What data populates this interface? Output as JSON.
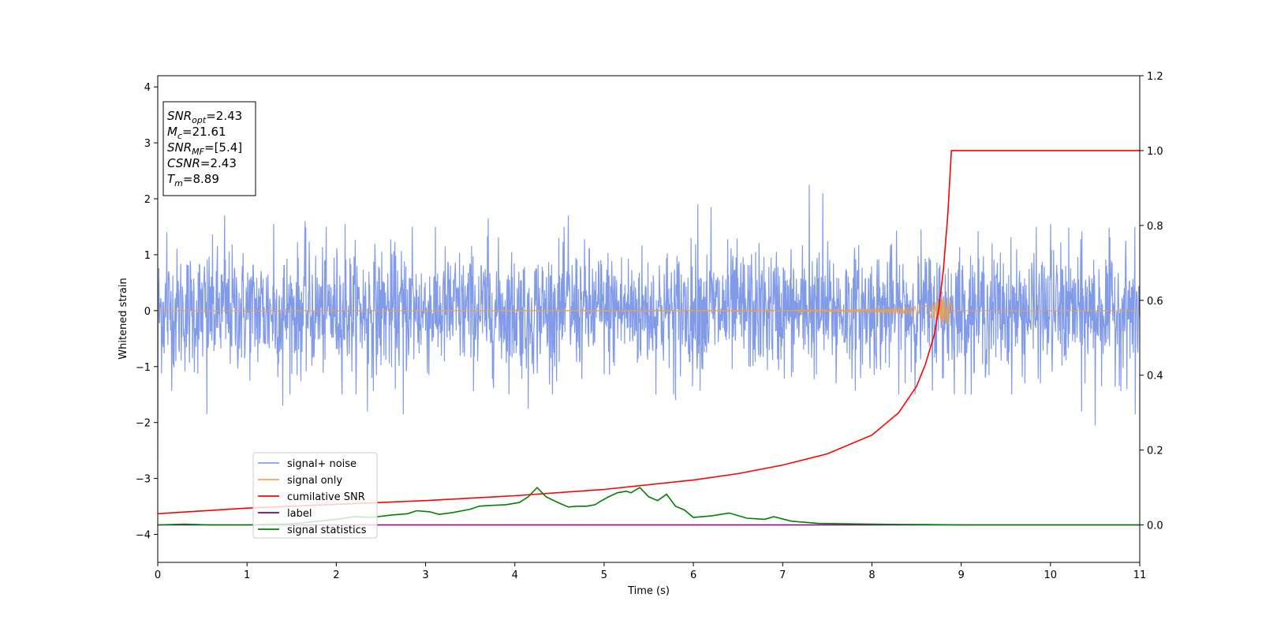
{
  "chart_data": {
    "type": "line",
    "title": "",
    "xlabel": "Time (s)",
    "ylabel": "Whitened strain",
    "y2label": "",
    "xlim": [
      0,
      11
    ],
    "ylim": [
      -4.5,
      4.2
    ],
    "y2lim": [
      -0.1,
      1.2
    ],
    "x_ticks": [
      0,
      1,
      2,
      3,
      4,
      5,
      6,
      7,
      8,
      9,
      10,
      11
    ],
    "y_ticks": [
      -4,
      -3,
      -2,
      -1,
      0,
      1,
      2,
      3,
      4
    ],
    "y2_ticks": [
      0.0,
      0.2,
      0.4,
      0.6,
      0.8,
      1.0,
      1.2
    ],
    "x_tick_labels": [
      "0",
      "1",
      "2",
      "3",
      "4",
      "5",
      "6",
      "7",
      "8",
      "9",
      "10",
      "11"
    ],
    "y_tick_labels": [
      "−4",
      "−3",
      "−2",
      "−1",
      "0",
      "1",
      "2",
      "3",
      "4"
    ],
    "y2_tick_labels": [
      "0.0",
      "0.2",
      "0.4",
      "0.6",
      "0.8",
      "1.0",
      "1.2"
    ],
    "grid": false,
    "legend_position": "lower-left",
    "annotation_box": {
      "position": "top-left",
      "lines": [
        {
          "main": "SNR",
          "sub": "opt",
          "rest": "=2.43"
        },
        {
          "main": "M",
          "sub": "c",
          "rest": "=21.61"
        },
        {
          "main": "SNR",
          "sub": "MF",
          "rest": "=[5.4]"
        },
        {
          "main": "CSNR",
          "sub": "",
          "rest": "=2.43"
        },
        {
          "main": "T",
          "sub": "m",
          "rest": "=8.89"
        }
      ]
    },
    "series": [
      {
        "name": "signal+ noise",
        "color": "#7b96e8",
        "axis": "left",
        "style": "noise band",
        "x_range": [
          0,
          11
        ],
        "typical_amplitude": 1.2,
        "peak_values": [
          {
            "x": 0.1,
            "y": 1.4
          },
          {
            "x": 0.55,
            "y": -1.85
          },
          {
            "x": 0.75,
            "y": 1.7
          },
          {
            "x": 1.3,
            "y": 1.55
          },
          {
            "x": 1.4,
            "y": -1.7
          },
          {
            "x": 1.65,
            "y": 1.6
          },
          {
            "x": 2.1,
            "y": 1.55
          },
          {
            "x": 2.35,
            "y": -1.8
          },
          {
            "x": 2.75,
            "y": -1.85
          },
          {
            "x": 2.85,
            "y": 1.5
          },
          {
            "x": 3.7,
            "y": 1.65
          },
          {
            "x": 4.15,
            "y": -1.75
          },
          {
            "x": 4.6,
            "y": 1.7
          },
          {
            "x": 5.8,
            "y": -1.6
          },
          {
            "x": 6.05,
            "y": 1.9
          },
          {
            "x": 6.2,
            "y": 1.85
          },
          {
            "x": 7.3,
            "y": 2.25
          },
          {
            "x": 7.45,
            "y": 2.1
          },
          {
            "x": 7.6,
            "y": -1.3
          },
          {
            "x": 8.55,
            "y": 1.45
          },
          {
            "x": 8.8,
            "y": -1.2
          },
          {
            "x": 10.0,
            "y": 1.55
          },
          {
            "x": 10.35,
            "y": -1.8
          },
          {
            "x": 10.5,
            "y": -2.05
          },
          {
            "x": 10.95,
            "y": -1.85
          }
        ]
      },
      {
        "name": "signal only",
        "color": "#e8a050",
        "axis": "left",
        "x": [
          0,
          7.0,
          8.0,
          8.4,
          8.6,
          8.75,
          8.85,
          8.89,
          11
        ],
        "envelope": [
          0,
          0.01,
          0.03,
          0.06,
          0.1,
          0.18,
          0.26,
          0.3,
          0
        ]
      },
      {
        "name": "cumilative SNR",
        "color": "#ff0000",
        "axis": "right",
        "x": [
          0,
          1,
          2,
          3,
          4,
          5,
          6,
          6.5,
          7,
          7.5,
          8,
          8.3,
          8.5,
          8.6,
          8.7,
          8.75,
          8.8,
          8.85,
          8.89,
          11
        ],
        "values": [
          0.03,
          0.045,
          0.055,
          0.065,
          0.078,
          0.095,
          0.12,
          0.137,
          0.16,
          0.19,
          0.24,
          0.3,
          0.37,
          0.43,
          0.51,
          0.58,
          0.68,
          0.83,
          1.0,
          1.0
        ]
      },
      {
        "name": "label",
        "color": "#800080",
        "axis": "right",
        "x": [
          0,
          11
        ],
        "values": [
          0.0,
          0.0
        ]
      },
      {
        "name": "signal statistics",
        "color": "#008000",
        "axis": "right",
        "x": [
          0,
          0.3,
          0.6,
          1.0,
          1.5,
          1.8,
          2.0,
          2.2,
          2.4,
          2.6,
          2.8,
          2.9,
          3.05,
          3.15,
          3.3,
          3.5,
          3.6,
          3.7,
          3.9,
          4.05,
          4.15,
          4.25,
          4.35,
          4.5,
          4.6,
          4.7,
          4.8,
          4.9,
          4.95,
          5.05,
          5.15,
          5.25,
          5.3,
          5.4,
          5.5,
          5.6,
          5.7,
          5.8,
          5.9,
          6.0,
          6.2,
          6.4,
          6.6,
          6.8,
          6.9,
          7.1,
          7.4,
          8.0,
          8.6,
          9.0,
          11
        ],
        "values": [
          0.0,
          0.002,
          0.0,
          0.0,
          0.003,
          0.01,
          0.015,
          0.022,
          0.02,
          0.026,
          0.03,
          0.038,
          0.035,
          0.028,
          0.033,
          0.042,
          0.05,
          0.052,
          0.054,
          0.06,
          0.075,
          0.1,
          0.075,
          0.058,
          0.048,
          0.05,
          0.05,
          0.054,
          0.062,
          0.075,
          0.086,
          0.09,
          0.086,
          0.1,
          0.075,
          0.065,
          0.082,
          0.05,
          0.04,
          0.02,
          0.024,
          0.032,
          0.018,
          0.015,
          0.022,
          0.01,
          0.004,
          0.002,
          0.001,
          0.0,
          0.0
        ]
      }
    ]
  }
}
